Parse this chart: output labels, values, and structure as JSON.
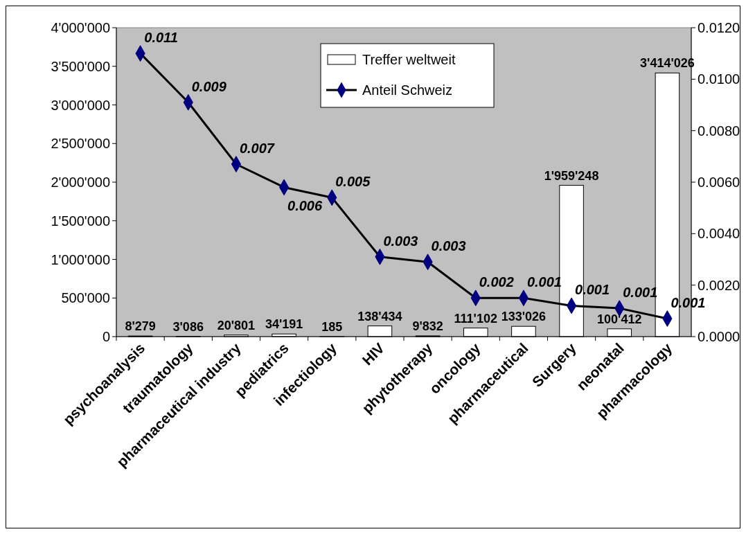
{
  "chart_data": {
    "type": "bar",
    "categories": [
      "psychoanalysis",
      "traumatology",
      "pharmaceutical  industry",
      "pediatrics",
      "infectiology",
      "HIV",
      "phytotherapy",
      "oncology",
      "pharmaceutical",
      "Surgery",
      "neonatal",
      "pharmacology"
    ],
    "series": [
      {
        "name": "Treffer weltweit",
        "color": "#ffffff",
        "values": [
          8279,
          3086,
          20801,
          34191,
          185,
          138434,
          9832,
          111102,
          133026,
          1959248,
          100412,
          3414026
        ],
        "value_labels": [
          "8'279",
          "3'086",
          "20'801",
          "34'191",
          "185",
          "138'434",
          "9'832",
          "111'102",
          "133'026",
          "1'959'248",
          "100'412",
          "3'414'026"
        ]
      },
      {
        "name": "Anteil Schweiz",
        "type": "line",
        "axis": "y2",
        "color": "#000080",
        "marker": "diamond",
        "values": [
          0.011,
          0.0091,
          0.0067,
          0.0058,
          0.0054,
          0.0031,
          0.0029,
          0.0015,
          0.0015,
          0.0012,
          0.0011,
          0.0007
        ],
        "value_labels": [
          "0.011",
          "0.009",
          "0.007",
          "0.006",
          "0.005",
          "0.003",
          "0.003",
          "0.002",
          "0.001",
          "0.001",
          "0.001",
          "0.001"
        ]
      }
    ],
    "ylim": [
      0,
      4000000
    ],
    "yticks": [
      0,
      {
        "value": 500000,
        "label": "500'000"
      },
      {
        "value": 1000000,
        "label": "1'000'000"
      },
      {
        "value": 1500000,
        "label": "1'500'000"
      },
      {
        "value": 2000000,
        "label": "2'000'000"
      },
      {
        "value": 2500000,
        "label": "2'500'000"
      },
      {
        "value": 3000000,
        "label": "3'000'000"
      },
      {
        "value": 3500000,
        "label": "3'500'000"
      },
      {
        "value": 4000000,
        "label": "4'000'000"
      }
    ],
    "y2lim": [
      0,
      0.012
    ],
    "y2ticks": [
      {
        "value": 0,
        "label": "0.0000"
      },
      {
        "value": 0.002,
        "label": "0.0020"
      },
      {
        "value": 0.004,
        "label": "0.0040"
      },
      {
        "value": 0.006,
        "label": "0.0060"
      },
      {
        "value": 0.008,
        "label": "0.0080"
      },
      {
        "value": 0.01,
        "label": "0.0100"
      },
      {
        "value": 0.012,
        "label": "0.0120"
      }
    ],
    "legend": "top",
    "grid": false
  }
}
